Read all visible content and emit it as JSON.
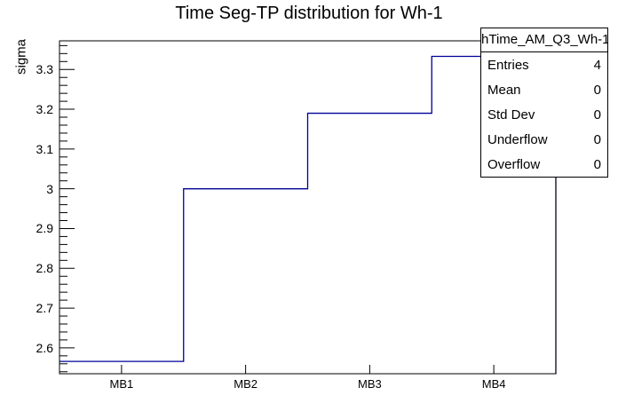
{
  "title": "Time Seg-TP distribution for Wh-1",
  "colors": {
    "line": "#000099",
    "axis": "#000000",
    "background": "#ffffff"
  },
  "y_axis": {
    "title": "sigma",
    "majors": [
      2.6,
      2.7,
      2.8,
      2.9,
      3.0,
      3.1,
      3.2,
      3.3
    ],
    "labels": [
      "2.6",
      "2.7",
      "2.8",
      "2.9",
      "3",
      "3.1",
      "3.2",
      "3.3"
    ],
    "minor_step": 0.02
  },
  "x_axis": {
    "categories": [
      "MB1",
      "MB2",
      "MB3",
      "MB4"
    ]
  },
  "stats_box": {
    "header": "hTime_AM_Q3_Wh-1",
    "rows": [
      {
        "label": "Entries",
        "value": "4"
      },
      {
        "label": "Mean",
        "value": "0"
      },
      {
        "label": "Std Dev",
        "value": "0"
      },
      {
        "label": "Underflow",
        "value": "0"
      },
      {
        "label": "Overflow",
        "value": "0"
      }
    ]
  },
  "chart_data": {
    "type": "line",
    "style": "step-histogram",
    "title": "Time Seg-TP distribution for Wh-1",
    "series_name": "hTime_AM_Q3_Wh-1",
    "categories": [
      "MB1",
      "MB2",
      "MB3",
      "MB4"
    ],
    "values": [
      2.566,
      3.0,
      3.19,
      3.333
    ],
    "xlabel": "",
    "ylabel": "sigma",
    "ylim": [
      2.535,
      3.372
    ],
    "grid": false,
    "legend": "none"
  }
}
